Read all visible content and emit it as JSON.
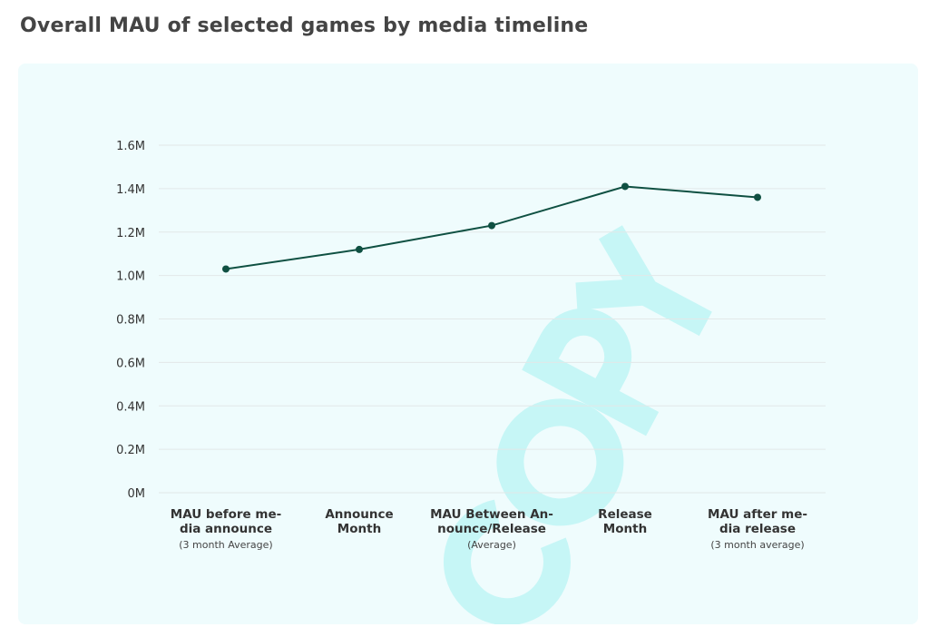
{
  "title": "Overall MAU of selected games by media timeline",
  "watermark": "COPY",
  "colors": {
    "line": "#0f5042",
    "grid": "#e2e8e8",
    "panel": "#effcfd"
  },
  "chart_data": {
    "type": "line",
    "title": "Overall MAU of selected games by media timeline",
    "xlabel": "",
    "ylabel": "",
    "ylim": [
      0,
      1.6
    ],
    "y_unit": "M",
    "grid": true,
    "yticks": [
      "0M",
      "0.2M",
      "0.4M",
      "0.6M",
      "0.8M",
      "1.0M",
      "1.2M",
      "1.4M",
      "1.6M"
    ],
    "ytick_values": [
      0,
      0.2,
      0.4,
      0.6,
      0.8,
      1.0,
      1.2,
      1.4,
      1.6
    ],
    "categories": [
      {
        "lines": [
          "MAU before me-",
          "dia announce"
        ],
        "note": "(3 month Average)"
      },
      {
        "lines": [
          "Announce",
          "Month"
        ],
        "note": ""
      },
      {
        "lines": [
          "MAU Between An-",
          "nounce/Release"
        ],
        "note": "(Average)"
      },
      {
        "lines": [
          "Release",
          "Month"
        ],
        "note": ""
      },
      {
        "lines": [
          "MAU after me-",
          "dia release"
        ],
        "note": "(3 month average)"
      }
    ],
    "series": [
      {
        "name": "MAU",
        "values": [
          1.03,
          1.12,
          1.23,
          1.41,
          1.36
        ]
      }
    ]
  }
}
